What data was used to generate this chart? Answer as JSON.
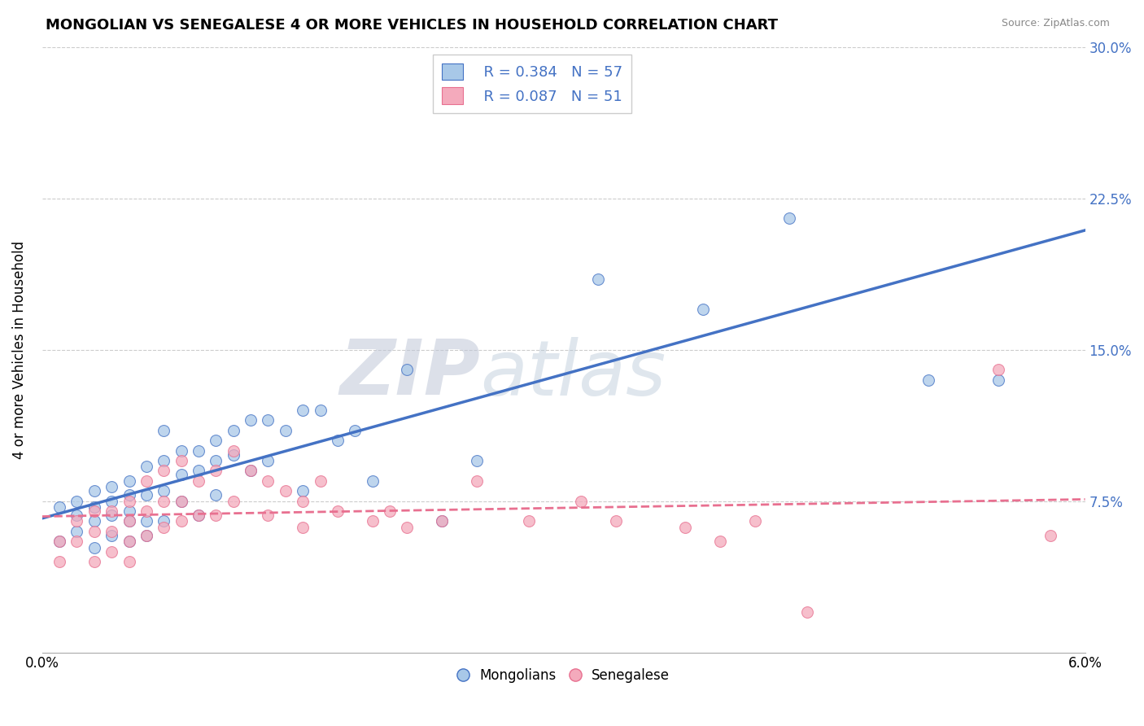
{
  "title": "MONGOLIAN VS SENEGALESE 4 OR MORE VEHICLES IN HOUSEHOLD CORRELATION CHART",
  "source": "Source: ZipAtlas.com",
  "ylabel": "4 or more Vehicles in Household",
  "xlabel_mongolians": "Mongolians",
  "xlabel_senegalese": "Senegalese",
  "legend_r_mongolian": "R = 0.384",
  "legend_n_mongolian": "N = 57",
  "legend_r_senegalese": "R = 0.087",
  "legend_n_senegalese": "N = 51",
  "xlim": [
    0.0,
    0.06
  ],
  "ylim": [
    0.0,
    0.3
  ],
  "xticks": [
    0.0,
    0.015,
    0.03,
    0.045,
    0.06
  ],
  "xtick_labels": [
    "0.0%",
    "",
    "",
    "",
    "6.0%"
  ],
  "yticks": [
    0.0,
    0.075,
    0.15,
    0.225,
    0.3
  ],
  "ytick_labels": [
    "",
    "7.5%",
    "15.0%",
    "22.5%",
    "30.0%"
  ],
  "color_mongolian": "#A8C8E8",
  "color_senegalese": "#F4AABC",
  "line_color_mongolian": "#4472C4",
  "line_color_senegalese": "#E87090",
  "watermark_zip": "ZIP",
  "watermark_atlas": "atlas",
  "mongolian_x": [
    0.001,
    0.001,
    0.002,
    0.002,
    0.002,
    0.003,
    0.003,
    0.003,
    0.003,
    0.004,
    0.004,
    0.004,
    0.004,
    0.005,
    0.005,
    0.005,
    0.005,
    0.005,
    0.006,
    0.006,
    0.006,
    0.006,
    0.007,
    0.007,
    0.007,
    0.007,
    0.008,
    0.008,
    0.008,
    0.009,
    0.009,
    0.009,
    0.01,
    0.01,
    0.01,
    0.011,
    0.011,
    0.012,
    0.012,
    0.013,
    0.013,
    0.014,
    0.015,
    0.015,
    0.016,
    0.017,
    0.018,
    0.019,
    0.021,
    0.023,
    0.025,
    0.027,
    0.032,
    0.038,
    0.043,
    0.051,
    0.055
  ],
  "mongolian_y": [
    0.055,
    0.072,
    0.068,
    0.075,
    0.06,
    0.065,
    0.072,
    0.08,
    0.052,
    0.075,
    0.082,
    0.068,
    0.058,
    0.078,
    0.085,
    0.07,
    0.065,
    0.055,
    0.092,
    0.078,
    0.065,
    0.058,
    0.11,
    0.095,
    0.08,
    0.065,
    0.1,
    0.088,
    0.075,
    0.1,
    0.09,
    0.068,
    0.105,
    0.095,
    0.078,
    0.11,
    0.098,
    0.115,
    0.09,
    0.115,
    0.095,
    0.11,
    0.12,
    0.08,
    0.12,
    0.105,
    0.11,
    0.085,
    0.14,
    0.065,
    0.095,
    0.27,
    0.185,
    0.17,
    0.215,
    0.135,
    0.135
  ],
  "senegalese_x": [
    0.001,
    0.001,
    0.002,
    0.002,
    0.003,
    0.003,
    0.003,
    0.004,
    0.004,
    0.004,
    0.005,
    0.005,
    0.005,
    0.005,
    0.006,
    0.006,
    0.006,
    0.007,
    0.007,
    0.007,
    0.008,
    0.008,
    0.008,
    0.009,
    0.009,
    0.01,
    0.01,
    0.011,
    0.011,
    0.012,
    0.013,
    0.013,
    0.014,
    0.015,
    0.015,
    0.016,
    0.017,
    0.019,
    0.02,
    0.021,
    0.023,
    0.025,
    0.028,
    0.031,
    0.033,
    0.037,
    0.039,
    0.041,
    0.044,
    0.055,
    0.058
  ],
  "senegalese_y": [
    0.055,
    0.045,
    0.065,
    0.055,
    0.07,
    0.06,
    0.045,
    0.07,
    0.06,
    0.05,
    0.075,
    0.065,
    0.055,
    0.045,
    0.085,
    0.07,
    0.058,
    0.09,
    0.075,
    0.062,
    0.095,
    0.075,
    0.065,
    0.085,
    0.068,
    0.09,
    0.068,
    0.1,
    0.075,
    0.09,
    0.085,
    0.068,
    0.08,
    0.075,
    0.062,
    0.085,
    0.07,
    0.065,
    0.07,
    0.062,
    0.065,
    0.085,
    0.065,
    0.075,
    0.065,
    0.062,
    0.055,
    0.065,
    0.02,
    0.14,
    0.058
  ]
}
